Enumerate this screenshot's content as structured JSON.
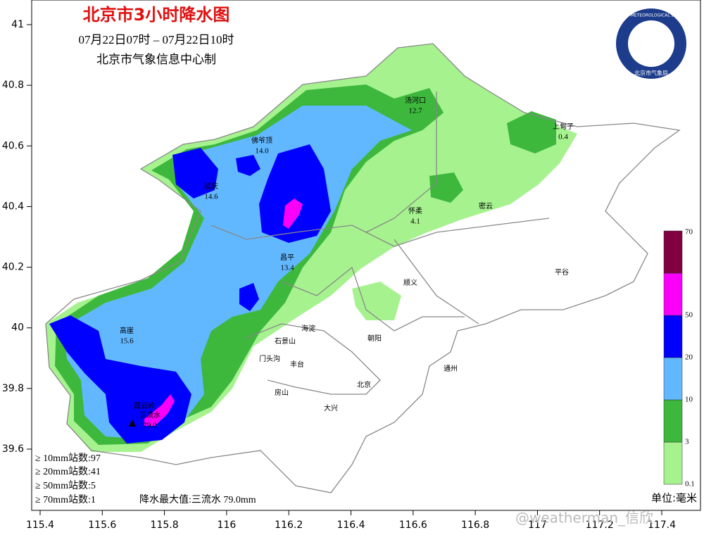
{
  "header": {
    "title": "北京市3小时降水图",
    "period": "07月22日07时 – 07月22日10时",
    "producer": "北京市气象信息中心制"
  },
  "logo": {
    "name_en": "BEIJING METEOROLOGICAL BUREAU",
    "name_cn": "北京市气象局"
  },
  "axes": {
    "lon_ticks": [
      115.4,
      115.6,
      115.8,
      116,
      116.2,
      116.4,
      116.6,
      116.8,
      117,
      117.2,
      117.4
    ],
    "lat_ticks": [
      39.6,
      39.8,
      40,
      40.2,
      40.4,
      40.6,
      40.8,
      41
    ]
  },
  "stations": [
    {
      "name": "汤河口",
      "value": "12.7"
    },
    {
      "name": "佛爷顶",
      "value": "14.0"
    },
    {
      "name": "延庆",
      "value": "14.6"
    },
    {
      "name": "上甸子",
      "value": "0.4"
    },
    {
      "name": "怀柔",
      "value": "4.1"
    },
    {
      "name": "昌平",
      "value": "13.4"
    },
    {
      "name": "高崖",
      "value": "15.6"
    },
    {
      "name": "三流水",
      "value": "79.0"
    }
  ],
  "places": [
    "密云",
    "顺义",
    "平谷",
    "海淀",
    "石景山",
    "朝阳",
    "门头沟",
    "丰台",
    "通州",
    "房山",
    "北京",
    "大兴",
    "霞云岭"
  ],
  "legend": {
    "unit": "单位:毫米",
    "levels": [
      {
        "label": "0.1",
        "color": "#a6f28f"
      },
      {
        "label": "3",
        "color": "#3db83d"
      },
      {
        "label": "10",
        "color": "#62b8ff"
      },
      {
        "label": "20",
        "color": "#0000fe"
      },
      {
        "label": "50",
        "color": "#fa00fa"
      },
      {
        "label": "70",
        "color": "#800040"
      }
    ]
  },
  "stats": [
    "≥ 10mm站数:97",
    "≥ 20mm站数:41",
    "≥ 50mm站数:5",
    "≥ 70mm站数:1"
  ],
  "max": "降水最大值:三流水 79.0mm",
  "watermark": "@weatherman_信欣"
}
